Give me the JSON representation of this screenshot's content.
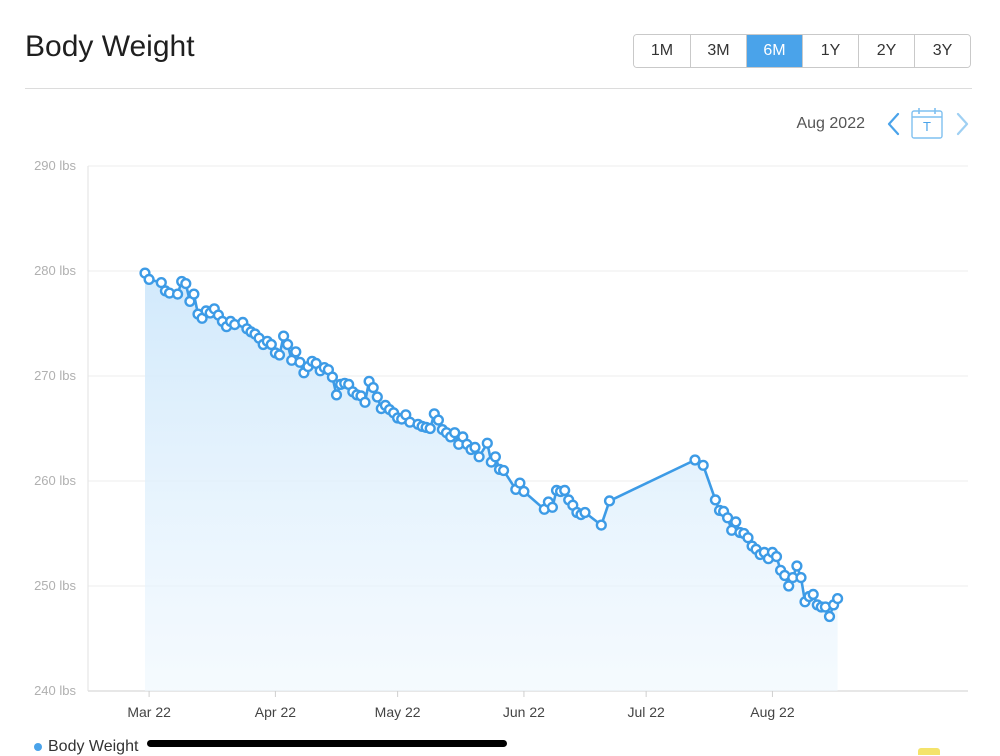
{
  "header": {
    "title": "Body Weight",
    "ranges": [
      "1M",
      "3M",
      "6M",
      "1Y",
      "2Y",
      "3Y"
    ],
    "active_range": "6M"
  },
  "period": {
    "label": "Aug 2022",
    "today_letter": "T",
    "prev_icon": "chevron-left-icon",
    "next_icon": "chevron-right-icon",
    "today_icon": "calendar-icon"
  },
  "legend": {
    "label": "Body Weight"
  },
  "colors": {
    "accent": "#4aa3ea",
    "line": "#3d9be6",
    "fill": "#d7ecfb"
  },
  "chart_data": {
    "type": "area",
    "title": "Body Weight",
    "xlabel": "",
    "ylabel": "",
    "ylim": [
      240,
      290
    ],
    "yticks": [
      290,
      280,
      270,
      260,
      250,
      240
    ],
    "ytick_labels": [
      "290 lbs",
      "280 lbs",
      "270 lbs",
      "260 lbs",
      "250 lbs",
      "240 lbs"
    ],
    "xticks": [
      "2022-03-01",
      "2022-04-01",
      "2022-05-01",
      "2022-06-01",
      "2022-07-01",
      "2022-08-01"
    ],
    "xtick_labels": [
      "Mar 22",
      "Apr 22",
      "May 22",
      "Jun 22",
      "Jul 22",
      "Aug 22"
    ],
    "xlim": [
      "2022-02-14",
      "2022-09-18"
    ],
    "grid": true,
    "legend_position": "bottom-left",
    "series": [
      {
        "name": "Body Weight",
        "points": [
          [
            "2022-02-28",
            279.8
          ],
          [
            "2022-03-01",
            279.2
          ],
          [
            "2022-03-04",
            278.9
          ],
          [
            "2022-03-05",
            278.1
          ],
          [
            "2022-03-06",
            277.9
          ],
          [
            "2022-03-08",
            277.8
          ],
          [
            "2022-03-09",
            279.0
          ],
          [
            "2022-03-10",
            278.8
          ],
          [
            "2022-03-11",
            277.1
          ],
          [
            "2022-03-12",
            277.8
          ],
          [
            "2022-03-13",
            275.9
          ],
          [
            "2022-03-14",
            275.5
          ],
          [
            "2022-03-15",
            276.2
          ],
          [
            "2022-03-16",
            276.0
          ],
          [
            "2022-03-17",
            276.4
          ],
          [
            "2022-03-18",
            275.8
          ],
          [
            "2022-03-19",
            275.2
          ],
          [
            "2022-03-20",
            274.7
          ],
          [
            "2022-03-21",
            275.2
          ],
          [
            "2022-03-22",
            274.9
          ],
          [
            "2022-03-24",
            275.1
          ],
          [
            "2022-03-25",
            274.5
          ],
          [
            "2022-03-26",
            274.2
          ],
          [
            "2022-03-27",
            274.0
          ],
          [
            "2022-03-28",
            273.6
          ],
          [
            "2022-03-29",
            273.0
          ],
          [
            "2022-03-30",
            273.3
          ],
          [
            "2022-03-31",
            273.0
          ],
          [
            "2022-04-01",
            272.2
          ],
          [
            "2022-04-02",
            272.0
          ],
          [
            "2022-04-03",
            273.8
          ],
          [
            "2022-04-04",
            273.0
          ],
          [
            "2022-04-05",
            271.5
          ],
          [
            "2022-04-06",
            272.3
          ],
          [
            "2022-04-07",
            271.3
          ],
          [
            "2022-04-08",
            270.3
          ],
          [
            "2022-04-09",
            270.9
          ],
          [
            "2022-04-10",
            271.4
          ],
          [
            "2022-04-11",
            271.2
          ],
          [
            "2022-04-12",
            270.5
          ],
          [
            "2022-04-13",
            270.8
          ],
          [
            "2022-04-14",
            270.6
          ],
          [
            "2022-04-15",
            269.9
          ],
          [
            "2022-04-16",
            268.2
          ],
          [
            "2022-04-17",
            269.2
          ],
          [
            "2022-04-18",
            269.3
          ],
          [
            "2022-04-19",
            269.2
          ],
          [
            "2022-04-20",
            268.5
          ],
          [
            "2022-04-21",
            268.2
          ],
          [
            "2022-04-22",
            268.1
          ],
          [
            "2022-04-23",
            267.5
          ],
          [
            "2022-04-24",
            269.5
          ],
          [
            "2022-04-25",
            268.9
          ],
          [
            "2022-04-26",
            268.0
          ],
          [
            "2022-04-27",
            266.9
          ],
          [
            "2022-04-28",
            267.2
          ],
          [
            "2022-04-29",
            266.8
          ],
          [
            "2022-04-30",
            266.5
          ],
          [
            "2022-05-01",
            266.0
          ],
          [
            "2022-05-02",
            265.9
          ],
          [
            "2022-05-03",
            266.3
          ],
          [
            "2022-05-04",
            265.6
          ],
          [
            "2022-05-06",
            265.4
          ],
          [
            "2022-05-07",
            265.2
          ],
          [
            "2022-05-08",
            265.1
          ],
          [
            "2022-05-09",
            265.0
          ],
          [
            "2022-05-10",
            266.4
          ],
          [
            "2022-05-11",
            265.8
          ],
          [
            "2022-05-12",
            264.9
          ],
          [
            "2022-05-13",
            264.6
          ],
          [
            "2022-05-14",
            264.2
          ],
          [
            "2022-05-15",
            264.6
          ],
          [
            "2022-05-16",
            263.5
          ],
          [
            "2022-05-17",
            264.2
          ],
          [
            "2022-05-18",
            263.5
          ],
          [
            "2022-05-19",
            263.0
          ],
          [
            "2022-05-20",
            263.2
          ],
          [
            "2022-05-21",
            262.3
          ],
          [
            "2022-05-23",
            263.6
          ],
          [
            "2022-05-24",
            261.8
          ],
          [
            "2022-05-25",
            262.3
          ],
          [
            "2022-05-26",
            261.1
          ],
          [
            "2022-05-27",
            261.0
          ],
          [
            "2022-05-30",
            259.2
          ],
          [
            "2022-05-31",
            259.8
          ],
          [
            "2022-06-01",
            259.0
          ],
          [
            "2022-06-06",
            257.3
          ],
          [
            "2022-06-07",
            258.0
          ],
          [
            "2022-06-08",
            257.5
          ],
          [
            "2022-06-09",
            259.1
          ],
          [
            "2022-06-10",
            259.0
          ],
          [
            "2022-06-11",
            259.1
          ],
          [
            "2022-06-12",
            258.2
          ],
          [
            "2022-06-13",
            257.7
          ],
          [
            "2022-06-14",
            257.0
          ],
          [
            "2022-06-15",
            256.8
          ],
          [
            "2022-06-16",
            257.0
          ],
          [
            "2022-06-20",
            255.8
          ],
          [
            "2022-06-22",
            258.1
          ],
          [
            "2022-07-13",
            262.0
          ],
          [
            "2022-07-15",
            261.5
          ],
          [
            "2022-07-18",
            258.2
          ],
          [
            "2022-07-19",
            257.2
          ],
          [
            "2022-07-20",
            257.1
          ],
          [
            "2022-07-21",
            256.5
          ],
          [
            "2022-07-22",
            255.3
          ],
          [
            "2022-07-23",
            256.1
          ],
          [
            "2022-07-24",
            255.1
          ],
          [
            "2022-07-25",
            255.0
          ],
          [
            "2022-07-26",
            254.6
          ],
          [
            "2022-07-27",
            253.8
          ],
          [
            "2022-07-28",
            253.5
          ],
          [
            "2022-07-29",
            253.0
          ],
          [
            "2022-07-30",
            253.2
          ],
          [
            "2022-07-31",
            252.6
          ],
          [
            "2022-08-01",
            253.2
          ],
          [
            "2022-08-02",
            252.8
          ],
          [
            "2022-08-03",
            251.5
          ],
          [
            "2022-08-04",
            251.0
          ],
          [
            "2022-08-05",
            250.0
          ],
          [
            "2022-08-06",
            250.8
          ],
          [
            "2022-08-07",
            251.9
          ],
          [
            "2022-08-08",
            250.8
          ],
          [
            "2022-08-09",
            248.5
          ],
          [
            "2022-08-10",
            249.0
          ],
          [
            "2022-08-11",
            249.2
          ],
          [
            "2022-08-12",
            248.2
          ],
          [
            "2022-08-13",
            248.0
          ],
          [
            "2022-08-14",
            248.0
          ],
          [
            "2022-08-15",
            247.1
          ],
          [
            "2022-08-16",
            248.2
          ],
          [
            "2022-08-17",
            248.8
          ]
        ]
      }
    ]
  }
}
